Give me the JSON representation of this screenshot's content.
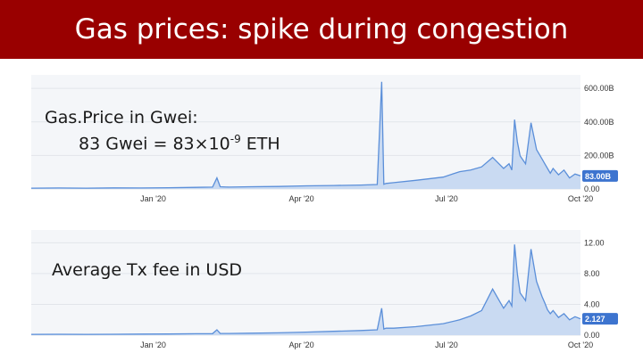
{
  "slide": {
    "title": "Gas prices:  spike during congestion",
    "accent_color": "#990000"
  },
  "gas_caption": {
    "line1": "Gas.Price in Gwei:",
    "line2_prefix": "83 Gwei = 83×10",
    "line2_exponent": "-9",
    "line2_suffix": " ETH"
  },
  "fee_caption": "Average Tx fee in USD",
  "chart_data": [
    {
      "type": "area",
      "y_unit_suffix": "B",
      "yticks": [
        "0.00",
        "200.00B",
        "400.00B",
        "600.00B"
      ],
      "ylim": [
        0,
        690
      ],
      "xticks": [
        {
          "label": "Jan '20",
          "x": 0.222
        },
        {
          "label": "Apr '20",
          "x": 0.492
        },
        {
          "label": "Jul '20",
          "x": 0.756
        },
        {
          "label": "Oct '20",
          "x": 1.0
        }
      ],
      "current_value_label": "83.00B",
      "line_color": "#5b8fd9",
      "fill_color": "#c9daf2",
      "badge_color": "#3d74cf",
      "x": [
        0,
        0.05,
        0.1,
        0.15,
        0.2,
        0.25,
        0.3,
        0.33,
        0.338,
        0.344,
        0.36,
        0.4,
        0.45,
        0.5,
        0.55,
        0.6,
        0.63,
        0.638,
        0.642,
        0.646,
        0.66,
        0.7,
        0.75,
        0.78,
        0.8,
        0.82,
        0.84,
        0.86,
        0.87,
        0.875,
        0.88,
        0.885,
        0.89,
        0.9,
        0.91,
        0.92,
        0.93,
        0.935,
        0.94,
        0.945,
        0.95,
        0.96,
        0.97,
        0.98,
        0.99,
        1.0
      ],
      "y": [
        5,
        6,
        5,
        7,
        6,
        8,
        10,
        12,
        70,
        14,
        12,
        14,
        16,
        20,
        22,
        25,
        28,
        680,
        30,
        35,
        40,
        55,
        75,
        110,
        120,
        140,
        200,
        130,
        160,
        120,
        440,
        300,
        210,
        160,
        420,
        250,
        190,
        160,
        130,
        100,
        130,
        90,
        120,
        70,
        95,
        83
      ]
    },
    {
      "type": "area",
      "yticks": [
        "0.00",
        "4.00",
        "8.00",
        "12.00"
      ],
      "ylim": [
        0,
        13
      ],
      "xticks": [
        {
          "label": "Jan '20",
          "x": 0.222
        },
        {
          "label": "Apr '20",
          "x": 0.492
        },
        {
          "label": "Jul '20",
          "x": 0.756
        },
        {
          "label": "Oct '20",
          "x": 1.0
        }
      ],
      "current_value_label": "2.127",
      "line_color": "#5b8fd9",
      "fill_color": "#c9daf2",
      "badge_color": "#3d74cf",
      "x": [
        0,
        0.05,
        0.1,
        0.15,
        0.2,
        0.25,
        0.3,
        0.33,
        0.338,
        0.344,
        0.36,
        0.4,
        0.45,
        0.5,
        0.55,
        0.6,
        0.63,
        0.638,
        0.642,
        0.646,
        0.66,
        0.7,
        0.75,
        0.78,
        0.8,
        0.82,
        0.84,
        0.86,
        0.87,
        0.875,
        0.88,
        0.885,
        0.89,
        0.9,
        0.91,
        0.92,
        0.93,
        0.935,
        0.94,
        0.945,
        0.95,
        0.96,
        0.97,
        0.98,
        0.99,
        1.0
      ],
      "y": [
        0.1,
        0.12,
        0.1,
        0.12,
        0.14,
        0.15,
        0.18,
        0.2,
        0.7,
        0.22,
        0.22,
        0.25,
        0.3,
        0.4,
        0.5,
        0.6,
        0.7,
        3.5,
        0.8,
        0.9,
        0.9,
        1.1,
        1.5,
        2.0,
        2.5,
        3.2,
        6.0,
        3.5,
        4.5,
        3.8,
        11.8,
        8.0,
        5.5,
        4.5,
        11.2,
        7.0,
        5.0,
        4.2,
        3.3,
        2.8,
        3.2,
        2.3,
        2.8,
        2.0,
        2.4,
        2.127
      ]
    }
  ]
}
